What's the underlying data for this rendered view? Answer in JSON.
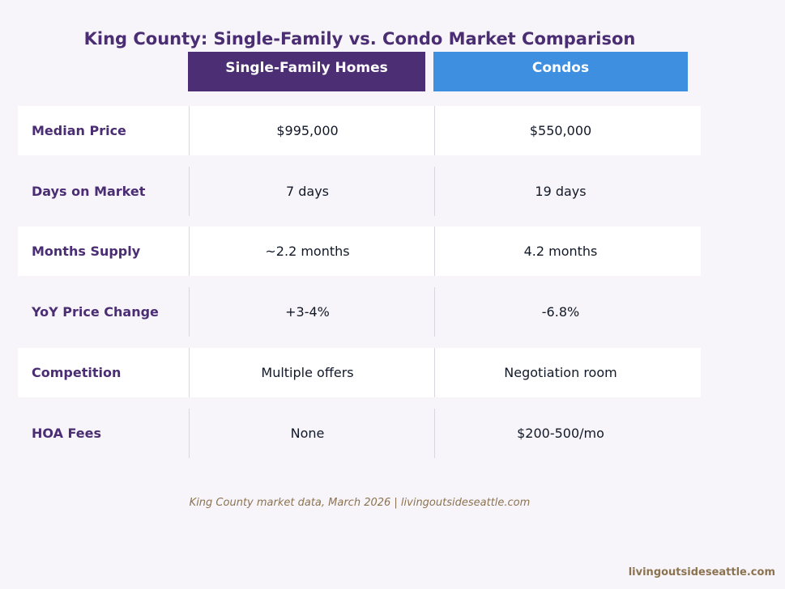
{
  "chart_data": {
    "type": "table",
    "title": "King County: Single-Family vs. Condo Market Comparison",
    "columns": [
      "Single-Family Homes",
      "Condos"
    ],
    "rows": [
      {
        "label": "Median Price",
        "values": [
          "$995,000",
          "$550,000"
        ]
      },
      {
        "label": "Days on Market",
        "values": [
          "7 days",
          "19 days"
        ]
      },
      {
        "label": "Months Supply",
        "values": [
          "~2.2 months",
          "4.2 months"
        ]
      },
      {
        "label": "YoY Price Change",
        "values": [
          "+3-4%",
          "-6.8%"
        ]
      },
      {
        "label": "Competition",
        "values": [
          "Multiple offers",
          "Negotiation room"
        ]
      },
      {
        "label": "HOA Fees",
        "values": [
          "None",
          "$200-500/mo"
        ]
      }
    ],
    "source": "King County market data, March 2026  |  livingoutsideseattle.com",
    "watermark": "livingoutsideseattle.com"
  },
  "colors": {
    "title": "#4a2d72",
    "single_family_header": "#4b2e73",
    "condo_header": "#3f8fe0",
    "row_label": "#4a2d72",
    "source_text": "#8c7350"
  }
}
